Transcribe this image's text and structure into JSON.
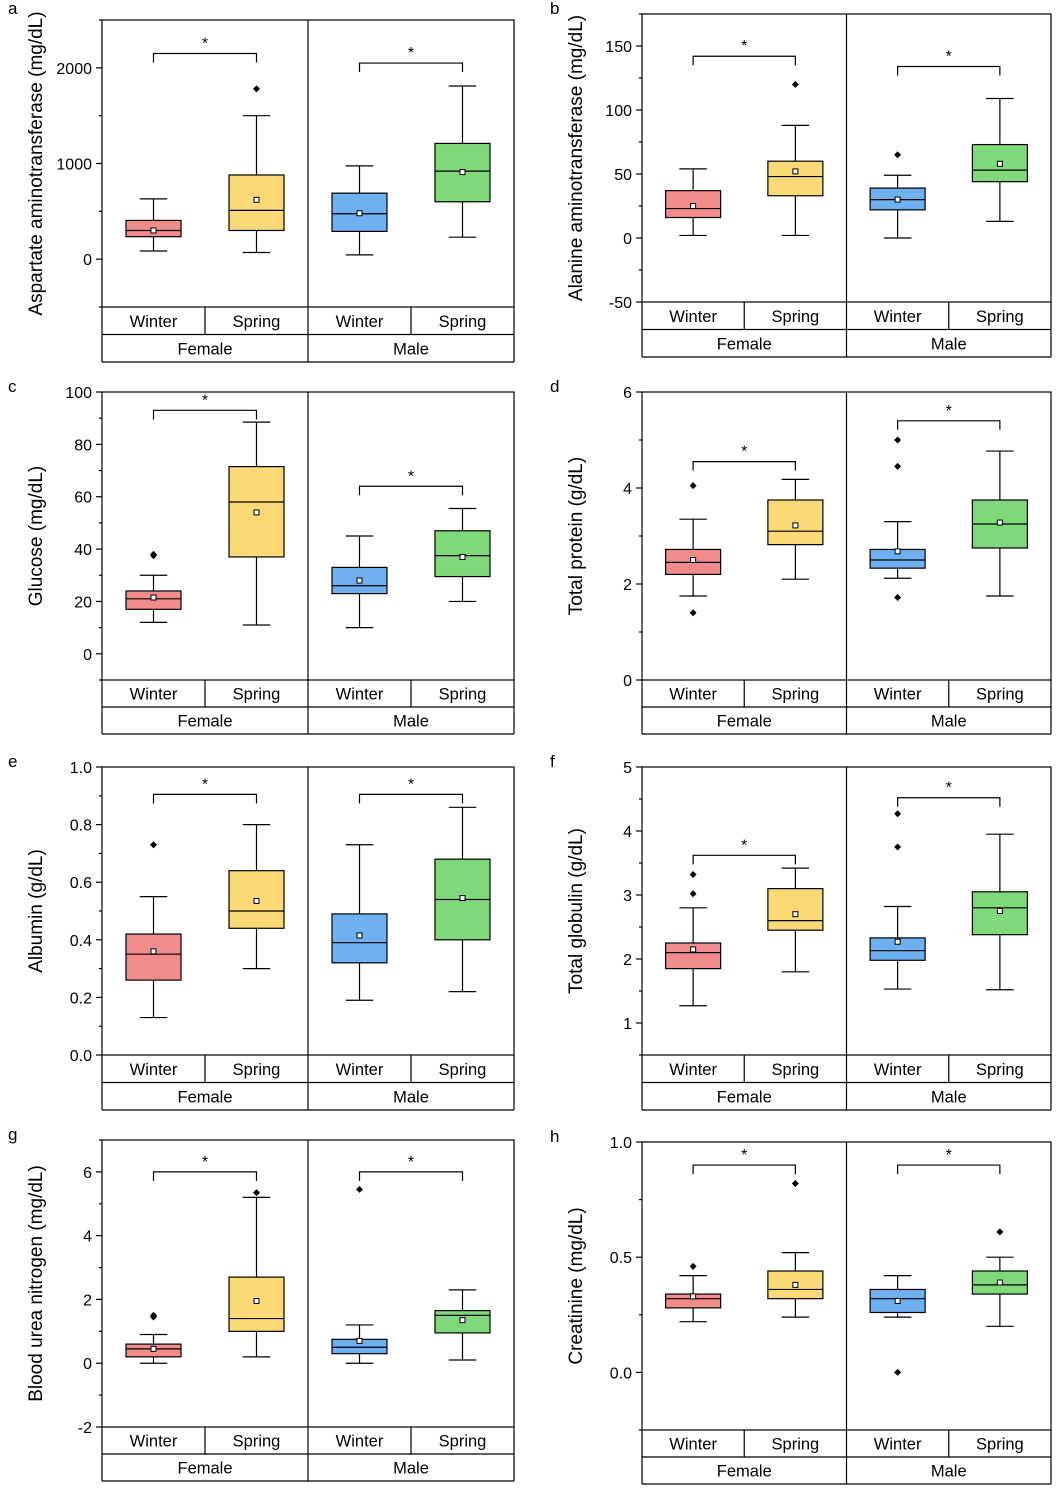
{
  "colors": {
    "female_winter": "#f28b8b",
    "female_spring": "#fbd976",
    "male_winter": "#6fb1f0",
    "male_spring": "#7fd97a",
    "line": "#000000"
  },
  "chart_data": [
    {
      "panel": "a",
      "type": "box",
      "ylabel": "Aspartate aminotransferase (mg/dL)",
      "ylim": [
        -500,
        2500
      ],
      "yticks": [
        0,
        1000,
        2000
      ],
      "minor_ticks": true,
      "sex_labels": [
        "Female",
        "Male"
      ],
      "season_labels": [
        "Winter",
        "Spring",
        "Winter",
        "Spring"
      ],
      "groups": [
        {
          "sex": "Female",
          "season": "Winter",
          "color": "female_winter",
          "whisker_low": 85,
          "q1": 235,
          "median": 300,
          "q3": 405,
          "whisker_high": 630,
          "mean": 300,
          "outliers": []
        },
        {
          "sex": "Female",
          "season": "Spring",
          "color": "female_spring",
          "whisker_low": 70,
          "q1": 300,
          "median": 510,
          "q3": 880,
          "whisker_high": 1500,
          "mean": 620,
          "outliers": [
            1780
          ]
        },
        {
          "sex": "Male",
          "season": "Winter",
          "color": "male_winter",
          "whisker_low": 45,
          "q1": 290,
          "median": 475,
          "q3": 690,
          "whisker_high": 975,
          "mean": 480,
          "outliers": []
        },
        {
          "sex": "Male",
          "season": "Spring",
          "color": "male_spring",
          "whisker_low": 230,
          "q1": 600,
          "median": 920,
          "q3": 1210,
          "whisker_high": 1810,
          "mean": 910,
          "outliers": []
        }
      ],
      "significance": [
        {
          "between": [
            0,
            1
          ],
          "y": 2150,
          "label": "*"
        },
        {
          "between": [
            2,
            3
          ],
          "y": 2050,
          "label": "*"
        }
      ]
    },
    {
      "panel": "b",
      "type": "box",
      "ylabel": "Alanine aminotransferase (mg/dL)",
      "ylim": [
        -50,
        175
      ],
      "yticks": [
        -50,
        0,
        50,
        100,
        150
      ],
      "minor_ticks": true,
      "sex_labels": [
        "Female",
        "Male"
      ],
      "season_labels": [
        "Winter",
        "Spring",
        "Winter",
        "Spring"
      ],
      "groups": [
        {
          "sex": "Female",
          "season": "Winter",
          "color": "female_winter",
          "whisker_low": 2,
          "q1": 16,
          "median": 23,
          "q3": 37,
          "whisker_high": 54,
          "mean": 25,
          "outliers": []
        },
        {
          "sex": "Female",
          "season": "Spring",
          "color": "female_spring",
          "whisker_low": 2,
          "q1": 33,
          "median": 48,
          "q3": 60,
          "whisker_high": 88,
          "mean": 52,
          "outliers": [
            120
          ]
        },
        {
          "sex": "Male",
          "season": "Winter",
          "color": "male_winter",
          "whisker_low": 0,
          "q1": 22,
          "median": 30,
          "q3": 39,
          "whisker_high": 49,
          "mean": 30,
          "outliers": [
            65
          ]
        },
        {
          "sex": "Male",
          "season": "Spring",
          "color": "male_spring",
          "whisker_low": 13,
          "q1": 44,
          "median": 53,
          "q3": 73,
          "whisker_high": 109,
          "mean": 58,
          "outliers": []
        }
      ],
      "significance": [
        {
          "between": [
            0,
            1
          ],
          "y": 142,
          "label": "*"
        },
        {
          "between": [
            2,
            3
          ],
          "y": 134,
          "label": "*"
        }
      ]
    },
    {
      "panel": "c",
      "type": "box",
      "ylabel": "Glucose (mg/dL)",
      "ylim": [
        -10,
        100
      ],
      "yticks": [
        0,
        20,
        40,
        60,
        80,
        100
      ],
      "minor_ticks": true,
      "sex_labels": [
        "Female",
        "Male"
      ],
      "season_labels": [
        "Winter",
        "Spring",
        "Winter",
        "Spring"
      ],
      "groups": [
        {
          "sex": "Female",
          "season": "Winter",
          "color": "female_winter",
          "whisker_low": 12,
          "q1": 17,
          "median": 21,
          "q3": 24,
          "whisker_high": 30,
          "mean": 21.5,
          "outliers": [
            37.5,
            38
          ]
        },
        {
          "sex": "Female",
          "season": "Spring",
          "color": "female_spring",
          "whisker_low": 11,
          "q1": 37,
          "median": 58,
          "q3": 71.5,
          "whisker_high": 88.5,
          "mean": 54,
          "outliers": []
        },
        {
          "sex": "Male",
          "season": "Winter",
          "color": "male_winter",
          "whisker_low": 10,
          "q1": 23,
          "median": 26,
          "q3": 33,
          "whisker_high": 45,
          "mean": 28,
          "outliers": []
        },
        {
          "sex": "Male",
          "season": "Spring",
          "color": "male_spring",
          "whisker_low": 20,
          "q1": 29.5,
          "median": 37.5,
          "q3": 47,
          "whisker_high": 55.5,
          "mean": 37,
          "outliers": []
        }
      ],
      "significance": [
        {
          "between": [
            0,
            1
          ],
          "y": 93,
          "label": "*"
        },
        {
          "between": [
            2,
            3
          ],
          "y": 64,
          "label": "*"
        }
      ]
    },
    {
      "panel": "d",
      "type": "box",
      "ylabel": "Total protein (g/dL)",
      "ylim": [
        0,
        6
      ],
      "yticks": [
        0,
        2,
        4,
        6
      ],
      "minor_ticks": true,
      "sex_labels": [
        "Female",
        "Male"
      ],
      "season_labels": [
        "Winter",
        "Spring",
        "Winter",
        "Spring"
      ],
      "groups": [
        {
          "sex": "Female",
          "season": "Winter",
          "color": "female_winter",
          "whisker_low": 1.75,
          "q1": 2.2,
          "median": 2.45,
          "q3": 2.72,
          "whisker_high": 3.35,
          "mean": 2.5,
          "outliers": [
            4.05,
            1.4
          ]
        },
        {
          "sex": "Female",
          "season": "Spring",
          "color": "female_spring",
          "whisker_low": 2.1,
          "q1": 2.82,
          "median": 3.1,
          "q3": 3.75,
          "whisker_high": 4.18,
          "mean": 3.22,
          "outliers": []
        },
        {
          "sex": "Male",
          "season": "Winter",
          "color": "male_winter",
          "whisker_low": 2.12,
          "q1": 2.33,
          "median": 2.5,
          "q3": 2.72,
          "whisker_high": 3.3,
          "mean": 2.68,
          "outliers": [
            5.0,
            4.45,
            1.72
          ]
        },
        {
          "sex": "Male",
          "season": "Spring",
          "color": "male_spring",
          "whisker_low": 1.75,
          "q1": 2.75,
          "median": 3.25,
          "q3": 3.75,
          "whisker_high": 4.77,
          "mean": 3.28,
          "outliers": []
        }
      ],
      "significance": [
        {
          "between": [
            0,
            1
          ],
          "y": 4.55,
          "label": "*"
        },
        {
          "between": [
            2,
            3
          ],
          "y": 5.4,
          "label": "*"
        }
      ]
    },
    {
      "panel": "e",
      "type": "box",
      "ylabel": "Albumin (g/dL)",
      "ylim": [
        0.0,
        1.0
      ],
      "yticks": [
        0.0,
        0.2,
        0.4,
        0.6,
        0.8,
        1.0
      ],
      "minor_ticks": true,
      "sex_labels": [
        "Female",
        "Male"
      ],
      "season_labels": [
        "Winter",
        "Spring",
        "Winter",
        "Spring"
      ],
      "groups": [
        {
          "sex": "Female",
          "season": "Winter",
          "color": "female_winter",
          "whisker_low": 0.13,
          "q1": 0.26,
          "median": 0.35,
          "q3": 0.42,
          "whisker_high": 0.55,
          "mean": 0.36,
          "outliers": [
            0.73
          ]
        },
        {
          "sex": "Female",
          "season": "Spring",
          "color": "female_spring",
          "whisker_low": 0.3,
          "q1": 0.44,
          "median": 0.5,
          "q3": 0.64,
          "whisker_high": 0.8,
          "mean": 0.535,
          "outliers": []
        },
        {
          "sex": "Male",
          "season": "Winter",
          "color": "male_winter",
          "whisker_low": 0.19,
          "q1": 0.32,
          "median": 0.39,
          "q3": 0.49,
          "whisker_high": 0.73,
          "mean": 0.415,
          "outliers": []
        },
        {
          "sex": "Male",
          "season": "Spring",
          "color": "male_spring",
          "whisker_low": 0.22,
          "q1": 0.4,
          "median": 0.54,
          "q3": 0.68,
          "whisker_high": 0.86,
          "mean": 0.545,
          "outliers": []
        }
      ],
      "significance": [
        {
          "between": [
            0,
            1
          ],
          "y": 0.905,
          "label": "*"
        },
        {
          "between": [
            2,
            3
          ],
          "y": 0.905,
          "label": "*"
        }
      ]
    },
    {
      "panel": "f",
      "type": "box",
      "ylabel": "Total globulin (g/dL)",
      "ylim": [
        0.5,
        5.0
      ],
      "yticks": [
        1,
        2,
        3,
        4,
        5
      ],
      "minor_ticks": true,
      "sex_labels": [
        "Female",
        "Male"
      ],
      "season_labels": [
        "Winter",
        "Spring",
        "Winter",
        "Spring"
      ],
      "groups": [
        {
          "sex": "Female",
          "season": "Winter",
          "color": "female_winter",
          "whisker_low": 1.27,
          "q1": 1.85,
          "median": 2.1,
          "q3": 2.25,
          "whisker_high": 2.8,
          "mean": 2.15,
          "outliers": [
            3.32,
            3.02
          ]
        },
        {
          "sex": "Female",
          "season": "Spring",
          "color": "female_spring",
          "whisker_low": 1.8,
          "q1": 2.45,
          "median": 2.6,
          "q3": 3.1,
          "whisker_high": 3.42,
          "mean": 2.7,
          "outliers": []
        },
        {
          "sex": "Male",
          "season": "Winter",
          "color": "male_winter",
          "whisker_low": 1.53,
          "q1": 1.98,
          "median": 2.13,
          "q3": 2.33,
          "whisker_high": 2.82,
          "mean": 2.27,
          "outliers": [
            4.27,
            3.75
          ]
        },
        {
          "sex": "Male",
          "season": "Spring",
          "color": "male_spring",
          "whisker_low": 1.52,
          "q1": 2.38,
          "median": 2.8,
          "q3": 3.05,
          "whisker_high": 3.95,
          "mean": 2.75,
          "outliers": []
        }
      ],
      "significance": [
        {
          "between": [
            0,
            1
          ],
          "y": 3.62,
          "label": "*"
        },
        {
          "between": [
            2,
            3
          ],
          "y": 4.52,
          "label": "*"
        }
      ]
    },
    {
      "panel": "g",
      "type": "box",
      "ylabel": "Blood urea nitrogen (mg/dL)",
      "ylim": [
        -2,
        7
      ],
      "yticks": [
        -2,
        0,
        2,
        4,
        6
      ],
      "minor_ticks": true,
      "sex_labels": [
        "Female",
        "Male"
      ],
      "season_labels": [
        "Winter",
        "Spring",
        "Winter",
        "Spring"
      ],
      "groups": [
        {
          "sex": "Female",
          "season": "Winter",
          "color": "female_winter",
          "whisker_low": 0.0,
          "q1": 0.2,
          "median": 0.45,
          "q3": 0.6,
          "whisker_high": 0.9,
          "mean": 0.45,
          "outliers": [
            1.45,
            1.5
          ]
        },
        {
          "sex": "Female",
          "season": "Spring",
          "color": "female_spring",
          "whisker_low": 0.2,
          "q1": 1.0,
          "median": 1.4,
          "q3": 2.7,
          "whisker_high": 5.2,
          "mean": 1.95,
          "outliers": [
            5.35
          ]
        },
        {
          "sex": "Male",
          "season": "Winter",
          "color": "male_winter",
          "whisker_low": 0.0,
          "q1": 0.3,
          "median": 0.5,
          "q3": 0.75,
          "whisker_high": 1.2,
          "mean": 0.7,
          "outliers": [
            5.45
          ]
        },
        {
          "sex": "Male",
          "season": "Spring",
          "color": "male_spring",
          "whisker_low": 0.1,
          "q1": 0.95,
          "median": 1.5,
          "q3": 1.65,
          "whisker_high": 2.3,
          "mean": 1.35,
          "outliers": []
        }
      ],
      "significance": [
        {
          "between": [
            0,
            1
          ],
          "y": 6.0,
          "label": "*"
        },
        {
          "between": [
            2,
            3
          ],
          "y": 6.0,
          "label": "*"
        }
      ]
    },
    {
      "panel": "h",
      "type": "box",
      "ylabel": "Creatinine (mg/dL)",
      "ylim": [
        -0.25,
        1.0
      ],
      "yticks": [
        0.0,
        0.5,
        1.0
      ],
      "minor_ticks": true,
      "sex_labels": [
        "Female",
        "Male"
      ],
      "season_labels": [
        "Winter",
        "Spring",
        "Winter",
        "Spring"
      ],
      "groups": [
        {
          "sex": "Female",
          "season": "Winter",
          "color": "female_winter",
          "whisker_low": 0.22,
          "q1": 0.28,
          "median": 0.32,
          "q3": 0.34,
          "whisker_high": 0.42,
          "mean": 0.33,
          "outliers": [
            0.46
          ]
        },
        {
          "sex": "Female",
          "season": "Spring",
          "color": "female_spring",
          "whisker_low": 0.24,
          "q1": 0.32,
          "median": 0.36,
          "q3": 0.44,
          "whisker_high": 0.52,
          "mean": 0.38,
          "outliers": [
            0.82
          ]
        },
        {
          "sex": "Male",
          "season": "Winter",
          "color": "male_winter",
          "whisker_low": 0.24,
          "q1": 0.26,
          "median": 0.32,
          "q3": 0.36,
          "whisker_high": 0.42,
          "mean": 0.31,
          "outliers": [
            0.0
          ]
        },
        {
          "sex": "Male",
          "season": "Spring",
          "color": "male_spring",
          "whisker_low": 0.2,
          "q1": 0.34,
          "median": 0.38,
          "q3": 0.44,
          "whisker_high": 0.5,
          "mean": 0.39,
          "outliers": [
            0.61
          ]
        }
      ],
      "significance": [
        {
          "between": [
            0,
            1
          ],
          "y": 0.9,
          "label": "*"
        },
        {
          "between": [
            2,
            3
          ],
          "y": 0.9,
          "label": "*"
        }
      ]
    }
  ]
}
